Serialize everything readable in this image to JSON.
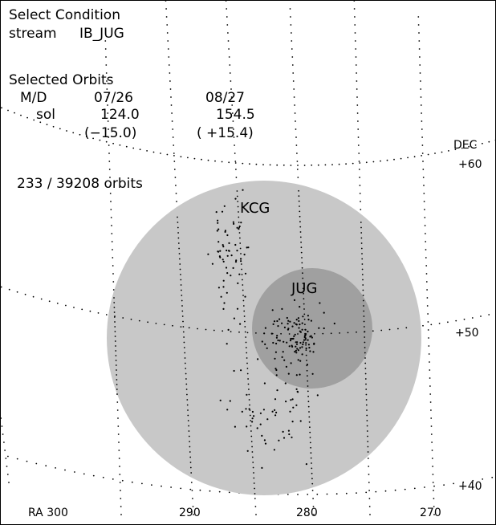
{
  "panel": {
    "select_title": "Select Condition",
    "stream_label": "stream",
    "stream_value": "IB_JUG",
    "selected_title": "Selected Orbits",
    "md_label": "M/D",
    "md_start": "07/26",
    "md_end": "08/27",
    "sol_label": "sol",
    "sol_start": "124.0",
    "sol_end": "154.5",
    "sol_start_offset": "(−15.0)",
    "sol_end_offset": "( +15.4)",
    "orbit_count": "233 / 39208 orbits"
  },
  "chart_data": {
    "type": "scatter",
    "projection": "sky RA/DEC",
    "xlabel": "RA",
    "ylabel": "DEC",
    "ra_ticks": [
      "RA 300",
      "290",
      "280",
      "270"
    ],
    "dec_ticks": [
      "+60",
      "+50",
      "+40"
    ],
    "regions": [
      {
        "name": "KCG",
        "color": "#c8c8c8"
      },
      {
        "name": "JUG",
        "color": "#a0a0a0"
      }
    ],
    "series": [
      {
        "name": "orbits",
        "count": 233,
        "color": "#000000"
      }
    ]
  }
}
